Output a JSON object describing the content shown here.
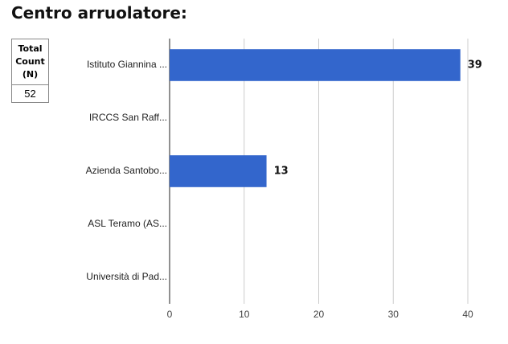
{
  "title": "Centro arruolatore:",
  "table": {
    "header": "Total Count (N)",
    "value": 52
  },
  "chart_data": {
    "type": "bar",
    "orientation": "horizontal",
    "categories": [
      "Istituto Giannina ...",
      "IRCCS San Raff...",
      "Azienda Santobo...",
      "ASL Teramo (AS...",
      "Università di Pad..."
    ],
    "values": [
      39,
      0,
      13,
      0,
      0
    ],
    "color": "#3366cc",
    "xlim": [
      0,
      40
    ],
    "xticks": [
      0,
      10,
      20,
      30,
      40
    ],
    "grid": true
  }
}
